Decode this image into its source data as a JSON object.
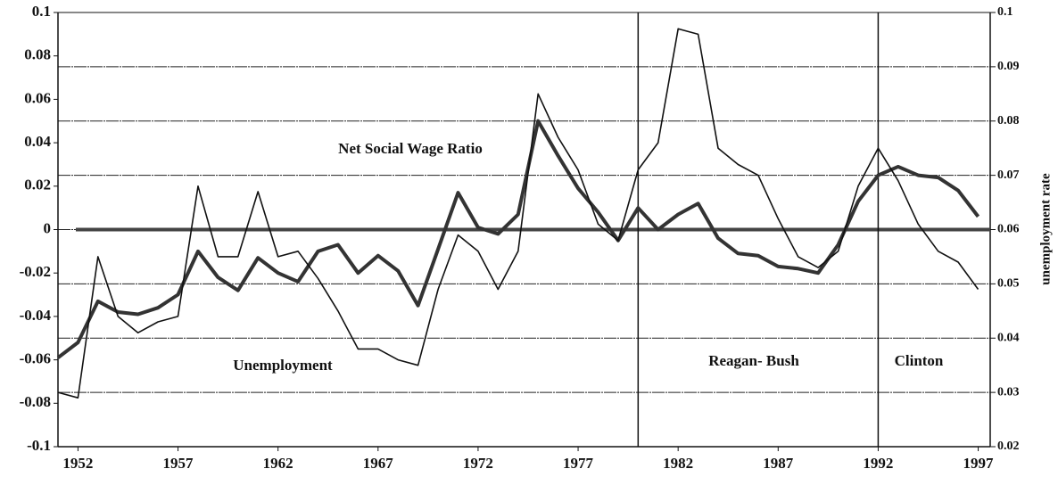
{
  "chart_data": {
    "type": "line",
    "x": [
      1951,
      1952,
      1953,
      1954,
      1955,
      1956,
      1957,
      1958,
      1959,
      1960,
      1961,
      1962,
      1963,
      1964,
      1965,
      1966,
      1967,
      1968,
      1969,
      1970,
      1971,
      1972,
      1973,
      1974,
      1975,
      1976,
      1977,
      1978,
      1979,
      1980,
      1981,
      1982,
      1983,
      1984,
      1985,
      1986,
      1987,
      1988,
      1989,
      1990,
      1991,
      1992,
      1993,
      1994,
      1995,
      1996,
      1997
    ],
    "series": [
      {
        "name": "Net Social Wage Ratio",
        "color": "#333333",
        "values": [
          -0.059,
          -0.052,
          -0.033,
          -0.038,
          -0.039,
          -0.036,
          -0.03,
          -0.01,
          -0.022,
          -0.028,
          -0.013,
          -0.02,
          -0.024,
          -0.01,
          -0.007,
          -0.02,
          -0.012,
          -0.019,
          -0.035,
          -0.009,
          0.017,
          0.001,
          -0.002,
          0.007,
          0.05,
          0.034,
          0.019,
          0.008,
          -0.005,
          0.01,
          0,
          0.007,
          0.012,
          -0.004,
          -0.011,
          -0.012,
          -0.017,
          -0.018,
          -0.02,
          -0.007,
          0.013,
          0.025,
          0.029,
          0.025,
          0.024,
          0.018,
          0.006
        ]
      },
      {
        "name": "Unemployment",
        "color": "#111111",
        "axis": "y2",
        "values": [
          0.03,
          0.029,
          0.055,
          0.044,
          0.041,
          0.043,
          0.044,
          0.068,
          0.055,
          0.055,
          0.067,
          0.055,
          0.056,
          0.051,
          0.045,
          0.038,
          0.038,
          0.036,
          0.035,
          0.049,
          0.059,
          0.056,
          0.049,
          0.056,
          0.085,
          0.077,
          0.071,
          0.061,
          0.058,
          0.071,
          0.076,
          0.097,
          0.096,
          0.075,
          0.072,
          0.07,
          0.062,
          0.055,
          0.053,
          0.056,
          0.068,
          0.075,
          0.069,
          0.061,
          0.056,
          0.054,
          0.049
        ]
      }
    ],
    "xlim": [
      1951,
      1997.6
    ],
    "xticks": [
      1952,
      1957,
      1962,
      1967,
      1972,
      1977,
      1982,
      1987,
      1992,
      1997
    ],
    "ylim": [
      -0.1,
      0.1
    ],
    "yticks": [
      -0.1,
      -0.08,
      -0.06,
      -0.04,
      -0.02,
      0,
      0.02,
      0.04,
      0.06,
      0.08,
      0.1
    ],
    "y2lim": [
      0.02,
      0.1
    ],
    "y2ticks": [
      0.02,
      0.03,
      0.04,
      0.05,
      0.06,
      0.07,
      0.08,
      0.09,
      0.1
    ],
    "y2label": "unemployment rate",
    "grid": true,
    "hline": 0,
    "vlines": [
      1980,
      1992
    ],
    "annotations": [
      "Net Social Wage Ratio",
      "Unemployment",
      "Reagan- Bush",
      "Clinton"
    ]
  }
}
